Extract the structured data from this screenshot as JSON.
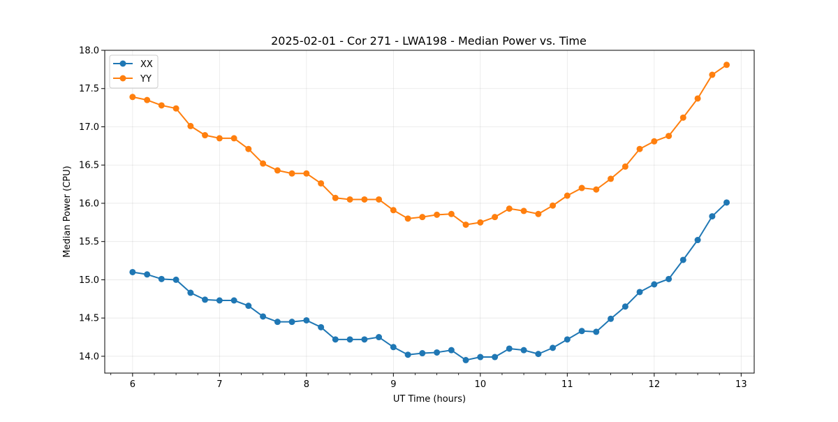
{
  "chart_data": {
    "type": "line",
    "title": "2025-02-01 - Cor 271 - LWA198 - Median Power vs. Time",
    "xlabel": "UT Time (hours)",
    "ylabel": "Median Power (CPU)",
    "xlim": [
      5.68,
      13.15
    ],
    "ylim": [
      13.78,
      18.0
    ],
    "xticks": [
      6,
      7,
      8,
      9,
      10,
      11,
      12,
      13
    ],
    "xtick_labels": [
      "6",
      "7",
      "8",
      "9",
      "10",
      "11",
      "12",
      "13"
    ],
    "yticks": [
      14.0,
      14.5,
      15.0,
      15.5,
      16.0,
      16.5,
      17.0,
      17.5,
      18.0
    ],
    "ytick_labels": [
      "14.0",
      "14.5",
      "15.0",
      "15.5",
      "16.0",
      "16.5",
      "17.0",
      "17.5",
      "18.0"
    ],
    "x_minor_step": 0.25,
    "grid": true,
    "legend_position": "top-left",
    "x": [
      6.0,
      6.167,
      6.333,
      6.5,
      6.667,
      6.833,
      7.0,
      7.167,
      7.333,
      7.5,
      7.667,
      7.833,
      8.0,
      8.167,
      8.333,
      8.5,
      8.667,
      8.833,
      9.0,
      9.167,
      9.333,
      9.5,
      9.667,
      9.833,
      10.0,
      10.167,
      10.333,
      10.5,
      10.667,
      10.833,
      11.0,
      11.167,
      11.333,
      11.5,
      11.667,
      11.833,
      12.0,
      12.167,
      12.333,
      12.5,
      12.667,
      12.833
    ],
    "series": [
      {
        "name": "XX",
        "color": "#1f77b4",
        "values": [
          15.1,
          15.07,
          15.01,
          15.0,
          14.83,
          14.74,
          14.73,
          14.73,
          14.66,
          14.52,
          14.45,
          14.45,
          14.47,
          14.38,
          14.22,
          14.22,
          14.22,
          14.25,
          14.12,
          14.02,
          14.04,
          14.05,
          14.08,
          13.95,
          13.99,
          13.99,
          14.1,
          14.08,
          14.03,
          14.11,
          14.22,
          14.33,
          14.32,
          14.49,
          14.65,
          14.84,
          14.94,
          15.01,
          15.26,
          15.52,
          15.83,
          16.01
        ]
      },
      {
        "name": "YY",
        "color": "#ff7f0e",
        "values": [
          17.39,
          17.35,
          17.28,
          17.24,
          17.01,
          16.89,
          16.85,
          16.85,
          16.71,
          16.52,
          16.43,
          16.39,
          16.39,
          16.26,
          16.07,
          16.05,
          16.05,
          16.05,
          15.91,
          15.8,
          15.82,
          15.85,
          15.86,
          15.72,
          15.75,
          15.82,
          15.93,
          15.9,
          15.86,
          15.97,
          16.1,
          16.2,
          16.18,
          16.32,
          16.48,
          16.71,
          16.81,
          16.88,
          17.12,
          17.37,
          17.68,
          17.81
        ]
      }
    ]
  }
}
